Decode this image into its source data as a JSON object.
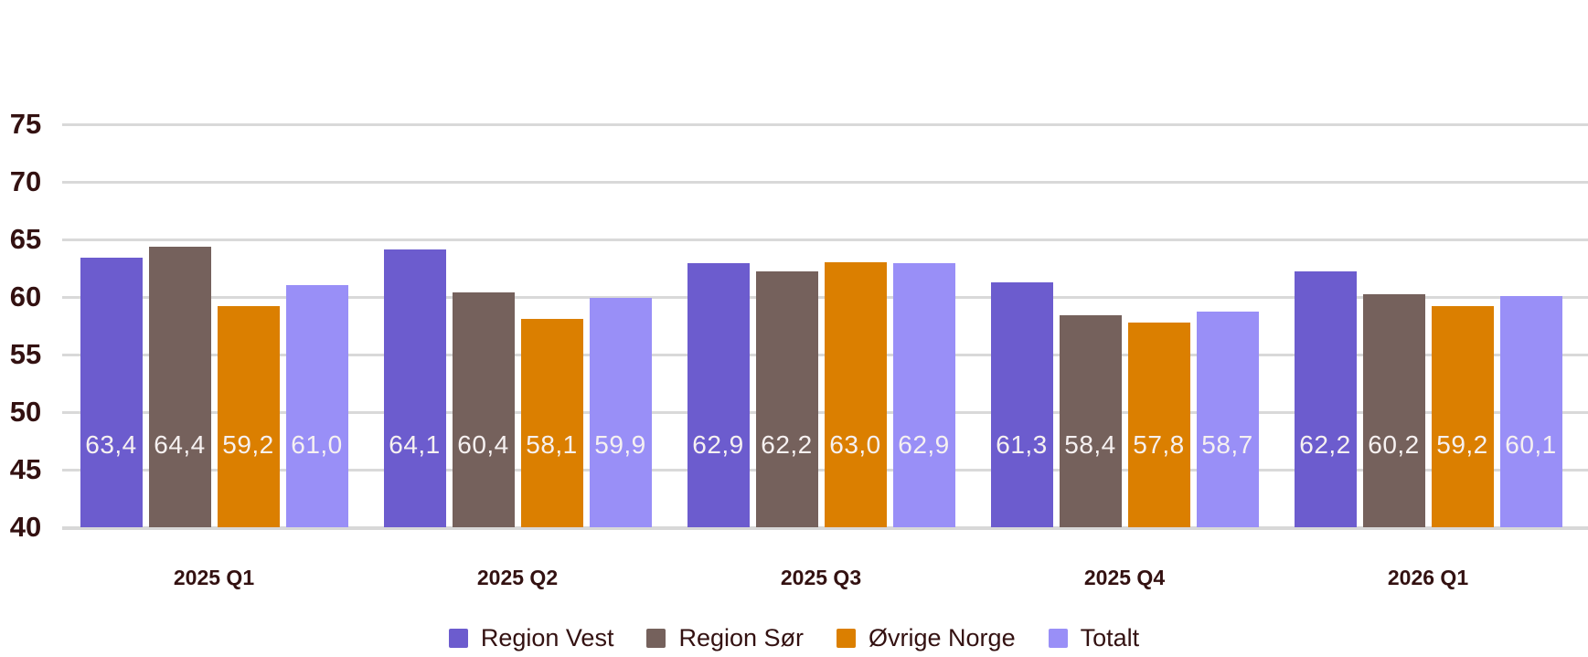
{
  "chart_data": {
    "type": "bar",
    "title": "",
    "categories": [
      "2025 Q1",
      "2025 Q2",
      "2025 Q3",
      "2025 Q4",
      "2026 Q1"
    ],
    "series": [
      {
        "name": "Region Vest",
        "color": "#6C5CCE",
        "values": [
          63.4,
          64.1,
          62.9,
          61.3,
          62.2
        ]
      },
      {
        "name": "Region Sør",
        "color": "#75615C",
        "values": [
          64.4,
          60.4,
          62.2,
          58.4,
          60.2
        ]
      },
      {
        "name": "Øvrige Norge",
        "color": "#DB7F00",
        "values": [
          59.2,
          58.1,
          63.0,
          57.8,
          59.2
        ]
      },
      {
        "name": "Totalt",
        "color": "#998FF7",
        "values": [
          61.0,
          59.9,
          62.9,
          58.7,
          60.1
        ]
      }
    ],
    "value_labels_shown": true,
    "decimal_separator": ",",
    "xlabel": "",
    "ylabel": "",
    "yaxis": {
      "min": 40,
      "max": 75,
      "ticks": [
        40,
        45,
        50,
        55,
        60,
        65,
        70,
        75
      ]
    },
    "grid": true,
    "legend_position": "bottom"
  },
  "colors": {
    "background": "#FFFFFF",
    "gridline": "#D9D9D9",
    "axis_text": "#331111",
    "value_label_text": "#F6F1F1"
  }
}
